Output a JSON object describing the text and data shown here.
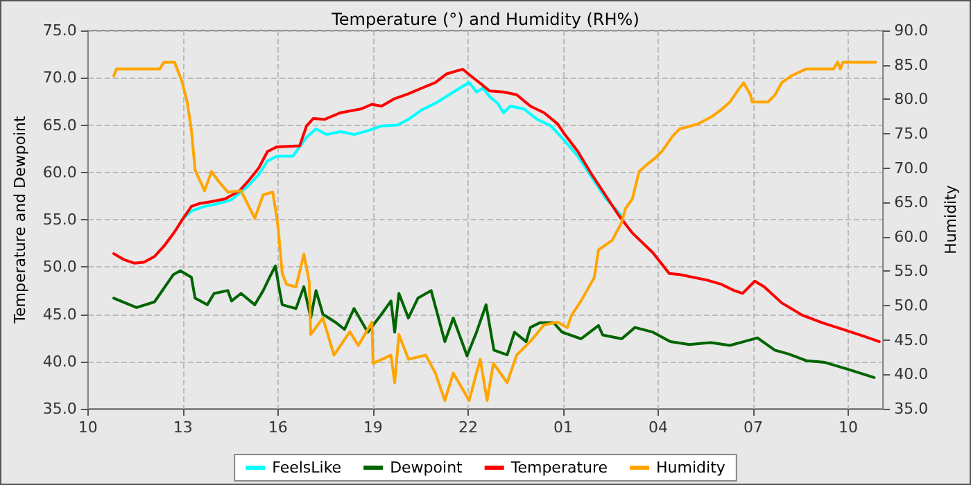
{
  "chart_data": {
    "type": "line",
    "title": "Temperature (°) and Humidity (RH%)",
    "ylabel": "Temperature and Dewpoint",
    "y2label": "Humidity",
    "xlim": [
      "--01-01T10:00",
      "--01-02T11:06"
    ],
    "xticks": [
      {
        "value": "--01-01T10:00",
        "label": "10"
      },
      {
        "value": "--01-01T13:00",
        "label": "13"
      },
      {
        "value": "--01-01T16:00",
        "label": "16"
      },
      {
        "value": "--01-01T19:00",
        "label": "19"
      },
      {
        "value": "--01-01T22:00",
        "label": "22"
      },
      {
        "value": "--01-02T01:00",
        "label": "01"
      },
      {
        "value": "--01-02T04:00",
        "label": "04"
      },
      {
        "value": "--01-02T07:00",
        "label": "07"
      },
      {
        "value": "--01-02T10:00",
        "label": "10"
      }
    ],
    "ylim": [
      35,
      75
    ],
    "yticks": [
      {
        "value": 35,
        "label": "35.0"
      },
      {
        "value": 40,
        "label": "40.0"
      },
      {
        "value": 45,
        "label": "45.0"
      },
      {
        "value": 50,
        "label": "50.0"
      },
      {
        "value": 55,
        "label": "55.0"
      },
      {
        "value": 60,
        "label": "60.0"
      },
      {
        "value": 65,
        "label": "65.0"
      },
      {
        "value": 70,
        "label": "70.0"
      },
      {
        "value": 75,
        "label": "75.0"
      }
    ],
    "y2lim": [
      35,
      90
    ],
    "y2ticks": [
      {
        "value": 35,
        "label": "35.0"
      },
      {
        "value": 40,
        "label": "40.0"
      },
      {
        "value": 45,
        "label": "45.0"
      },
      {
        "value": 50,
        "label": "50.0"
      },
      {
        "value": 55,
        "label": "55.0"
      },
      {
        "value": 60,
        "label": "60.0"
      },
      {
        "value": 65,
        "label": "65.0"
      },
      {
        "value": 70,
        "label": "70.0"
      },
      {
        "value": 75,
        "label": "75.0"
      },
      {
        "value": 80,
        "label": "80.0"
      },
      {
        "value": 85,
        "label": "85.0"
      },
      {
        "value": 90,
        "label": "90.0"
      }
    ],
    "grid": true,
    "legend": "bottom",
    "marker": "none",
    "line_style": "solid",
    "series": [
      {
        "name": "FeelsLike",
        "color": "#00ffff",
        "x": [
          "--01-01T13:00",
          "--01-01T13:16",
          "--01-01T13:41",
          "--01-01T14:07",
          "--01-01T14:32",
          "--01-01T15:04",
          "--01-01T15:24",
          "--01-01T15:40",
          "--01-01T15:58",
          "--01-01T16:28",
          "--01-01T16:54",
          "--01-01T17:12",
          "--01-01T17:32",
          "--01-01T17:58",
          "--01-01T18:24",
          "--01-01T18:50",
          "--01-01T19:16",
          "--01-01T19:46",
          "--01-01T20:07",
          "--01-01T20:32",
          "--01-01T20:58",
          "--01-01T21:24",
          "--01-01T21:44",
          "--01-01T22:02",
          "--01-01T22:16",
          "--01-01T22:28",
          "--01-01T22:41",
          "--01-01T22:56",
          "--01-01T23:07",
          "--01-01T23:20",
          "--01-01T23:46",
          "--01-02T00:11",
          "--01-02T00:37",
          "--01-02T01:02",
          "--01-02T01:28",
          "--01-02T01:54",
          "--01-02T02:20",
          "--01-02T02:51"
        ],
        "values": [
          55.1,
          55.9,
          56.4,
          56.7,
          57.1,
          58.6,
          59.8,
          61.2,
          61.7,
          61.7,
          63.7,
          64.6,
          64.0,
          64.3,
          64.0,
          64.4,
          64.9,
          65.0,
          65.6,
          66.6,
          67.3,
          68.2,
          68.9,
          69.5,
          68.5,
          68.9,
          68.0,
          67.3,
          66.3,
          67.0,
          66.7,
          65.6,
          64.9,
          63.4,
          61.7,
          59.5,
          57.3,
          55.4
        ]
      },
      {
        "name": "Dewpoint",
        "color": "#006400",
        "x": [
          "--01-01T10:49",
          "--01-01T11:32",
          "--01-01T12:06",
          "--01-01T12:42",
          "--01-01T12:55",
          "--01-01T13:16",
          "--01-01T13:23",
          "--01-01T13:46",
          "--01-01T13:59",
          "--01-01T14:25",
          "--01-01T14:32",
          "--01-01T14:50",
          "--01-01T15:16",
          "--01-01T15:32",
          "--01-01T15:44",
          "--01-01T15:55",
          "--01-01T16:02",
          "--01-01T16:08",
          "--01-01T16:34",
          "--01-01T16:49",
          "--01-01T17:02",
          "--01-01T17:12",
          "--01-01T17:25",
          "--01-01T17:50",
          "--01-01T18:06",
          "--01-01T18:24",
          "--01-01T18:50",
          "--01-01T19:16",
          "--01-01T19:34",
          "--01-01T19:41",
          "--01-01T19:49",
          "--01-01T20:07",
          "--01-01T20:25",
          "--01-01T20:50",
          "--01-01T21:16",
          "--01-01T21:32",
          "--01-01T21:58",
          "--01-01T22:16",
          "--01-01T22:34",
          "--01-01T22:49",
          "--01-01T23:14",
          "--01-01T23:28",
          "--01-01T23:50",
          "--01-01T23:58",
          "--01-02T00:16",
          "--01-02T00:42",
          "--01-02T00:58",
          "--01-02T01:34",
          "--01-02T02:07",
          "--01-02T02:15",
          "--01-02T02:51",
          "--01-02T03:16",
          "--01-02T03:50",
          "--01-02T04:23",
          "--01-02T04:59",
          "--01-02T05:40",
          "--01-02T06:16",
          "--01-02T06:42",
          "--01-02T07:08",
          "--01-02T07:41",
          "--01-02T08:07",
          "--01-02T08:40",
          "--01-02T09:16",
          "--01-02T09:58",
          "--01-02T10:49"
        ],
        "values": [
          46.7,
          45.7,
          46.3,
          49.2,
          49.6,
          48.9,
          46.7,
          46.0,
          47.2,
          47.5,
          46.4,
          47.2,
          46.0,
          47.5,
          48.9,
          50.1,
          47.8,
          46.0,
          45.6,
          47.9,
          44.6,
          47.5,
          45.0,
          44.1,
          43.4,
          45.6,
          43.1,
          45.0,
          46.4,
          43.1,
          47.2,
          44.6,
          46.7,
          47.5,
          42.1,
          44.6,
          40.6,
          43.1,
          46.0,
          41.2,
          40.7,
          43.1,
          42.1,
          43.6,
          44.1,
          44.1,
          43.1,
          42.4,
          43.8,
          42.8,
          42.4,
          43.6,
          43.1,
          42.1,
          41.8,
          42.0,
          41.7,
          42.1,
          42.5,
          41.2,
          40.8,
          40.1,
          39.9,
          39.2,
          38.3
        ]
      },
      {
        "name": "Temperature",
        "color": "#ff0000",
        "x": [
          "--01-01T10:49",
          "--01-01T11:07",
          "--01-01T11:28",
          "--01-01T11:46",
          "--01-01T12:06",
          "--01-01T12:24",
          "--01-01T12:44",
          "--01-01T13:00",
          "--01-01T13:16",
          "--01-01T13:31",
          "--01-01T13:54",
          "--01-01T14:20",
          "--01-01T14:46",
          "--01-01T15:04",
          "--01-01T15:24",
          "--01-01T15:40",
          "--01-01T15:58",
          "--01-01T16:41",
          "--01-01T16:54",
          "--01-01T17:07",
          "--01-01T17:28",
          "--01-01T17:58",
          "--01-01T18:37",
          "--01-01T18:58",
          "--01-01T19:16",
          "--01-01T19:41",
          "--01-01T20:07",
          "--01-01T20:32",
          "--01-01T20:58",
          "--01-01T21:19",
          "--01-01T21:37",
          "--01-01T21:50",
          "--01-01T22:05",
          "--01-01T22:28",
          "--01-01T22:41",
          "--01-01T23:07",
          "--01-01T23:32",
          "--01-01T23:58",
          "--01-02T00:24",
          "--01-02T00:50",
          "--01-02T01:02",
          "--01-02T01:28",
          "--01-02T01:54",
          "--01-02T02:20",
          "--01-02T02:46",
          "--01-02T03:11",
          "--01-02T03:50",
          "--01-02T04:21",
          "--01-02T04:41",
          "--01-02T05:33",
          "--01-02T05:58",
          "--01-02T06:24",
          "--01-02T06:40",
          "--01-02T07:03",
          "--01-02T07:21",
          "--01-02T07:54",
          "--01-02T08:33",
          "--01-02T09:11",
          "--01-02T09:50",
          "--01-02T10:28",
          "--01-02T10:59"
        ],
        "values": [
          51.4,
          50.8,
          50.4,
          50.5,
          51.1,
          52.2,
          53.7,
          55.1,
          56.4,
          56.7,
          56.9,
          57.2,
          58.0,
          59.1,
          60.5,
          62.2,
          62.7,
          62.8,
          64.9,
          65.7,
          65.6,
          66.3,
          66.7,
          67.2,
          67.0,
          67.8,
          68.3,
          68.9,
          69.5,
          70.4,
          70.7,
          70.9,
          70.2,
          69.2,
          68.6,
          68.5,
          68.2,
          67.0,
          66.3,
          65.1,
          64.1,
          62.2,
          59.8,
          57.6,
          55.4,
          53.6,
          51.5,
          49.3,
          49.2,
          48.6,
          48.2,
          47.5,
          47.2,
          48.5,
          47.9,
          46.2,
          44.9,
          44.1,
          43.4,
          42.7,
          42.1
        ]
      },
      {
        "name": "Humidity",
        "color": "#ffa500",
        "axis": "y2",
        "x": [
          "--01-01T10:49",
          "--01-01T10:54",
          "--01-01T12:16",
          "--01-01T12:24",
          "--01-01T12:44",
          "--01-01T12:58",
          "--01-01T13:08",
          "--01-01T13:16",
          "--01-01T13:23",
          "--01-01T13:41",
          "--01-01T13:54",
          "--01-01T14:07",
          "--01-01T14:25",
          "--01-01T14:50",
          "--01-01T15:16",
          "--01-01T15:32",
          "--01-01T15:50",
          "--01-01T15:58",
          "--01-01T16:01",
          "--01-01T16:08",
          "--01-01T16:16",
          "--01-01T16:34",
          "--01-01T16:49",
          "--01-01T16:59",
          "--01-01T17:02",
          "--01-01T17:25",
          "--01-01T17:46",
          "--01-01T18:16",
          "--01-01T18:32",
          "--01-01T18:58",
          "--01-01T19:00",
          "--01-01T19:34",
          "--01-01T19:41",
          "--01-01T19:49",
          "--01-01T20:07",
          "--01-01T20:40",
          "--01-01T20:58",
          "--01-01T21:16",
          "--01-01T21:32",
          "--01-01T22:02",
          "--01-01T22:23",
          "--01-01T22:36",
          "--01-01T22:48",
          "--01-01T23:14",
          "--01-01T23:32",
          "--01-01T23:58",
          "--01-02T00:24",
          "--01-02T00:50",
          "--01-02T01:08",
          "--01-02T01:16",
          "--01-02T01:34",
          "--01-02T01:59",
          "--01-02T02:07",
          "--01-02T02:33",
          "--01-02T02:51",
          "--01-02T02:58",
          "--01-02T03:11",
          "--01-02T03:24",
          "--01-02T03:42",
          "--01-02T03:55",
          "--01-02T04:08",
          "--01-02T04:28",
          "--01-02T04:41",
          "--01-02T05:15",
          "--01-02T05:40",
          "--01-02T05:58",
          "--01-02T06:16",
          "--01-02T06:32",
          "--01-02T06:42",
          "--01-02T06:55",
          "--01-02T06:58",
          "--01-02T07:28",
          "--01-02T07:41",
          "--01-02T07:54",
          "--01-02T08:12",
          "--01-02T08:40",
          "--01-02T09:32",
          "--01-02T09:40",
          "--01-02T09:45",
          "--01-02T09:50",
          "--01-02T10:52"
        ],
        "values": [
          83.4,
          84.4,
          84.4,
          85.4,
          85.4,
          82.6,
          79.6,
          75.5,
          69.7,
          66.7,
          69.5,
          68.1,
          66.5,
          66.7,
          62.7,
          66.1,
          66.5,
          62.7,
          60.7,
          54.7,
          53.1,
          52.7,
          57.5,
          53.5,
          45.8,
          48.2,
          42.8,
          46.2,
          44.2,
          47.6,
          41.6,
          42.8,
          38.8,
          45.8,
          42.2,
          42.8,
          40.2,
          36.2,
          40.2,
          36.2,
          42.2,
          36.2,
          41.6,
          38.8,
          42.8,
          44.8,
          47.2,
          47.6,
          46.8,
          48.6,
          50.7,
          54.1,
          58.1,
          59.5,
          62.1,
          64.1,
          65.5,
          69.5,
          70.7,
          71.5,
          72.5,
          74.7,
          75.7,
          76.4,
          77.4,
          78.4,
          79.6,
          81.4,
          82.4,
          80.6,
          79.6,
          79.6,
          80.6,
          82.4,
          83.4,
          84.4,
          84.4,
          85.4,
          84.4,
          85.4,
          85.4
        ]
      }
    ]
  }
}
